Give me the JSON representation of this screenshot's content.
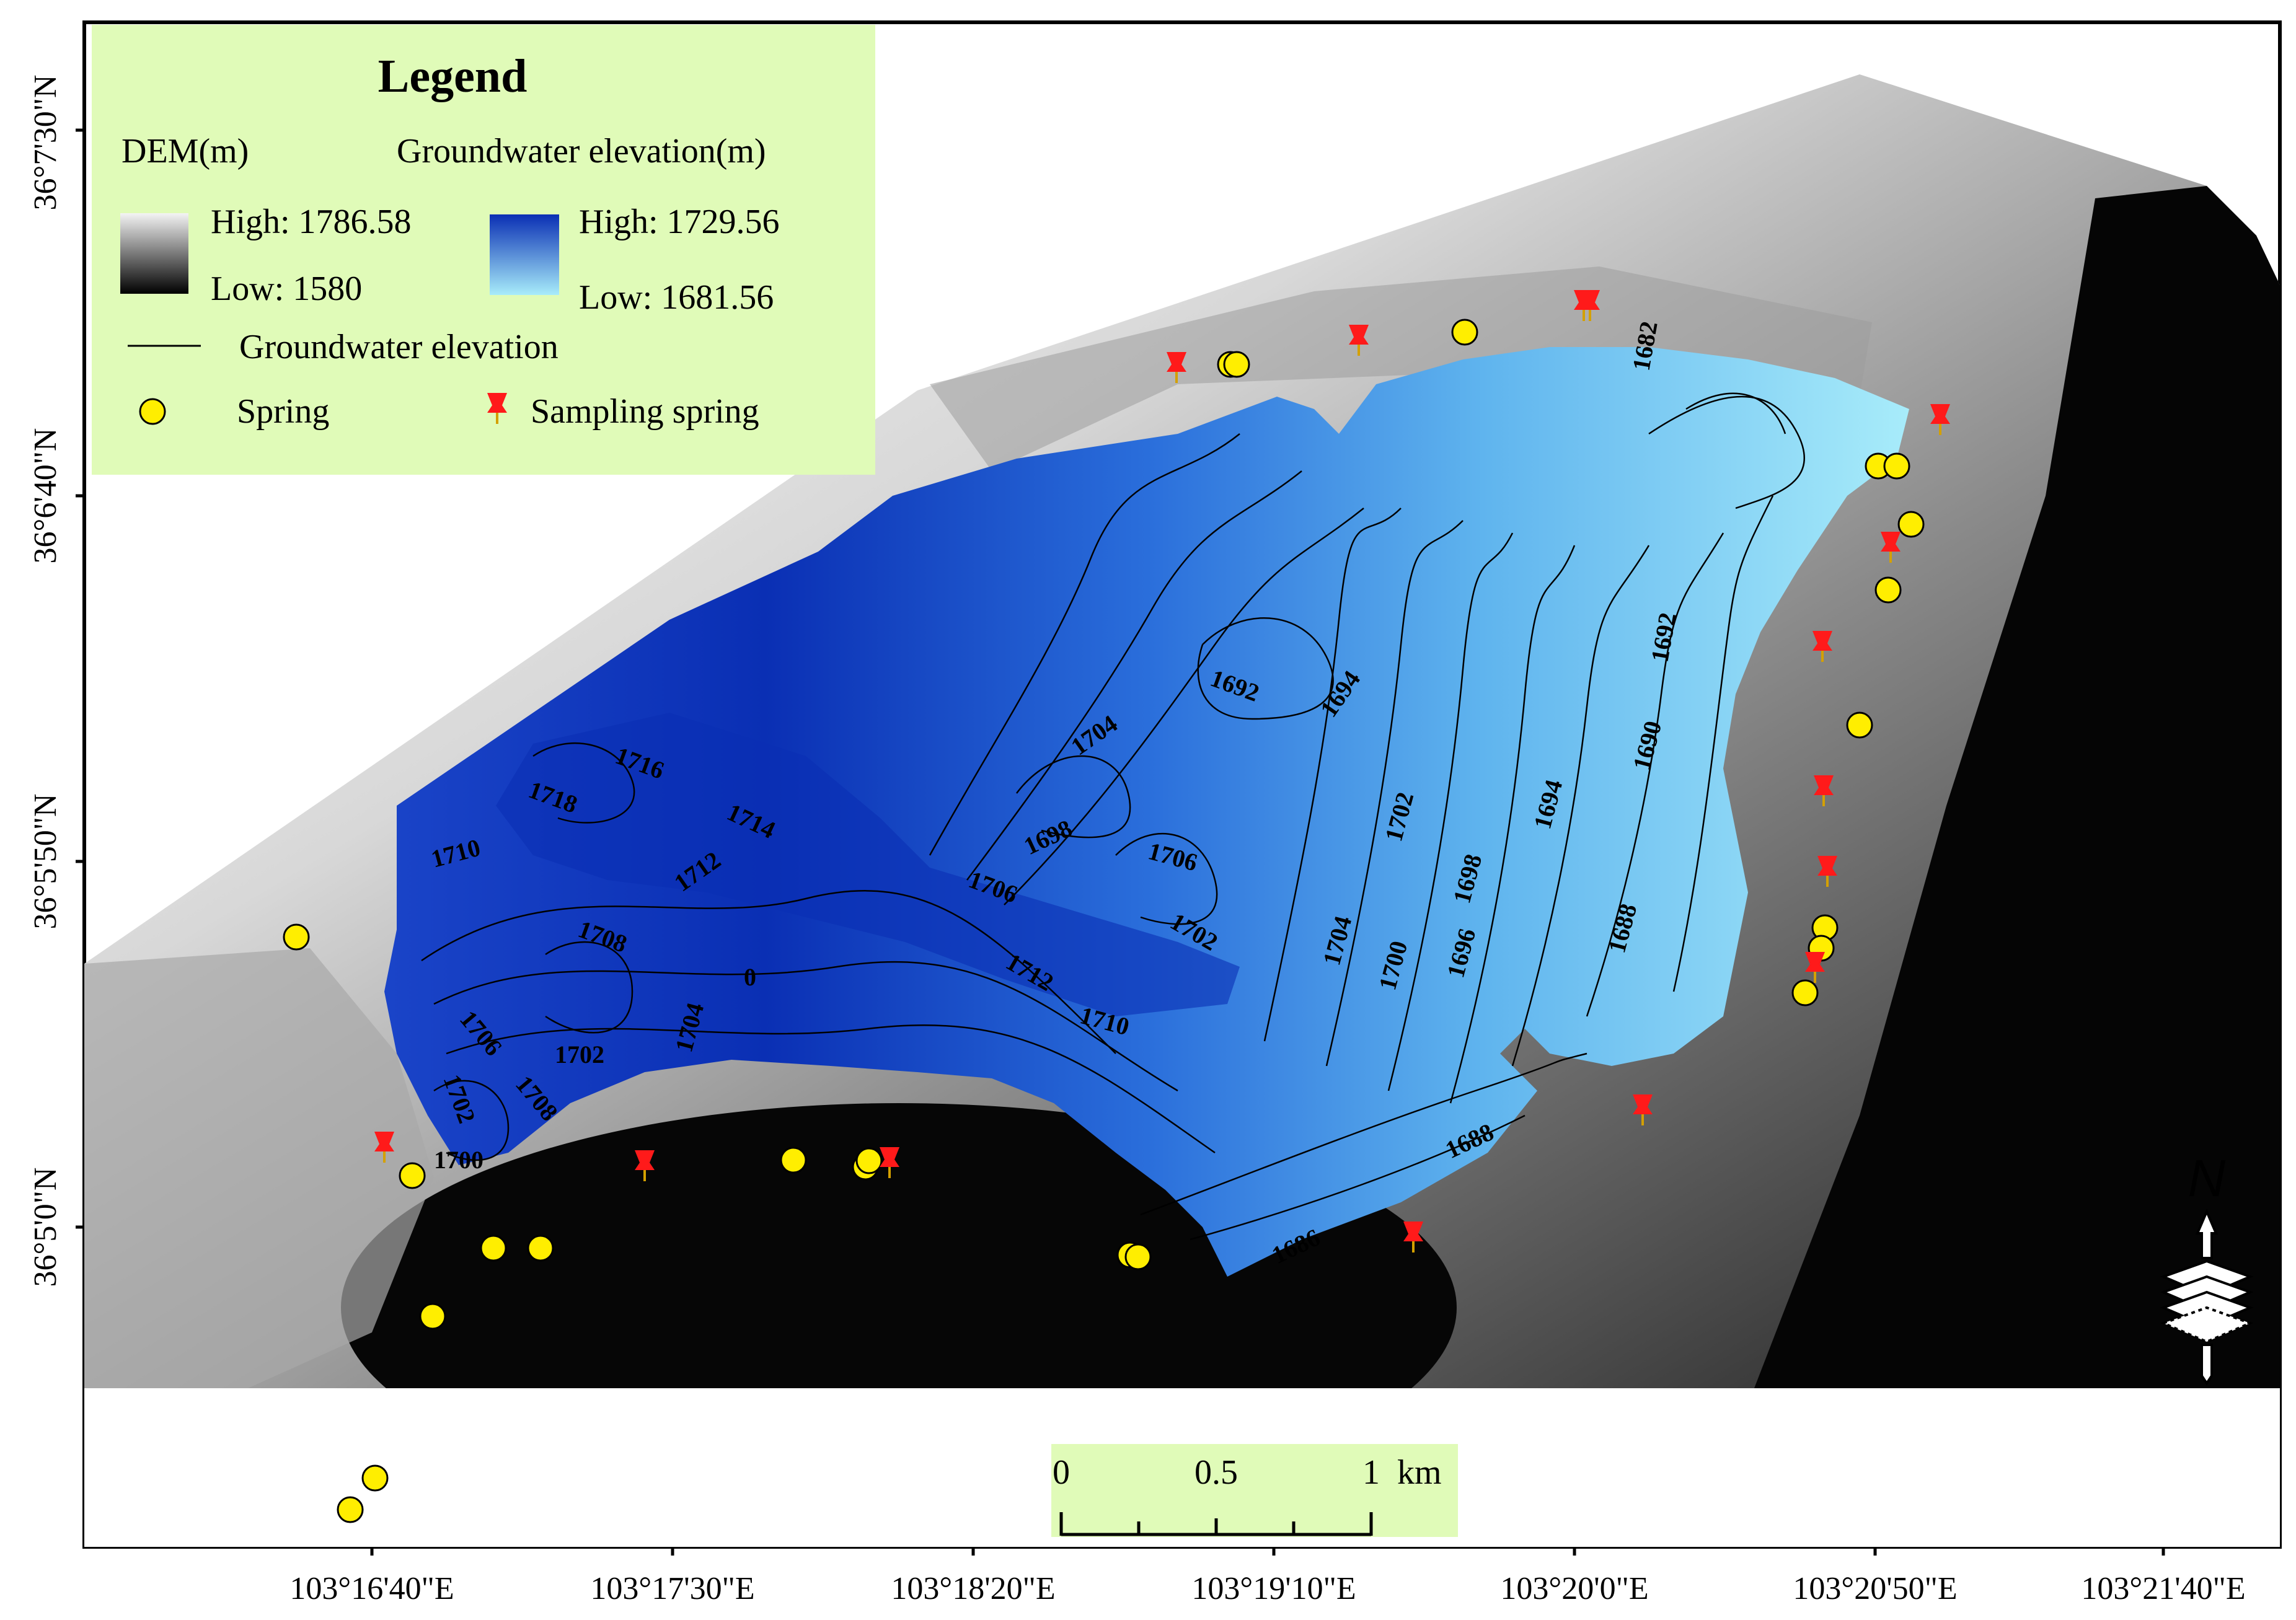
{
  "legend": {
    "title": "Legend",
    "dem_heading": "DEM(m)",
    "gw_heading": "Groundwater elevation(m)",
    "dem_high": "High: 1786.58",
    "dem_low": "Low: 1580",
    "gw_high": "High: 1729.56",
    "gw_low": "Low: 1681.56",
    "contour_label": "Groundwater elevation",
    "spring_label": "Spring",
    "sampling_label": "Sampling spring"
  },
  "axes": {
    "latitude_labels": [
      "36°7'30\"N",
      "36°6'40\"N",
      "36°5'50\"N",
      "36°5'0\"N"
    ],
    "longitude_labels": [
      "103°16'40\"E",
      "103°17'30\"E",
      "103°18'20\"E",
      "103°19'10\"E",
      "103°20'0\"E",
      "103°20'50\"E",
      "103°21'40\"E"
    ]
  },
  "scale_bar": {
    "ticks": [
      "0",
      "0.5",
      "1"
    ],
    "unit": "km"
  },
  "north_arrow": {
    "label": "N",
    "icon": "north-arrow-icon"
  },
  "contour_labels": [
    "1682",
    "1692",
    "1694",
    "1704",
    "1716",
    "1718",
    "1714",
    "1710",
    "1712",
    "1708",
    "0",
    "1706",
    "1698",
    "1706",
    "1702",
    "1712",
    "1710",
    "1704",
    "1702",
    "1706",
    "1708",
    "1702",
    "1700",
    "1704",
    "1702",
    "1700",
    "1698",
    "1696",
    "1694",
    "1692",
    "1690",
    "1688",
    "1688",
    "1686"
  ],
  "colors": {
    "legend_bg": "#e0fbb8",
    "gw_high": "#0a2fb4",
    "gw_low": "#a8ecfa",
    "dem_high": "#f2f2f2",
    "dem_low": "#000000",
    "spring_fill": "#ffee00",
    "sampling_marker": "#ff1a1a"
  }
}
